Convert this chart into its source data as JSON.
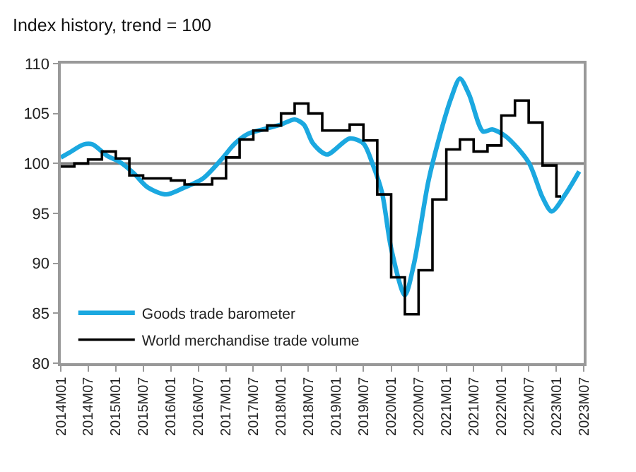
{
  "chart_data": {
    "type": "line",
    "title": "Index history, trend = 100",
    "xlim": [
      "2014-01",
      "2023-07"
    ],
    "xticks": [
      {
        "value": "2014-01",
        "label": "2014M01"
      },
      {
        "value": "2014-07",
        "label": "2014M07"
      },
      {
        "value": "2015-01",
        "label": "2015M01"
      },
      {
        "value": "2015-07",
        "label": "2015M07"
      },
      {
        "value": "2016-01",
        "label": "2016M01"
      },
      {
        "value": "2016-07",
        "label": "2016M07"
      },
      {
        "value": "2017-01",
        "label": "2017M01"
      },
      {
        "value": "2017-07",
        "label": "2017M07"
      },
      {
        "value": "2018-01",
        "label": "2018M01"
      },
      {
        "value": "2018-07",
        "label": "2018M07"
      },
      {
        "value": "2019-01",
        "label": "2019M01"
      },
      {
        "value": "2019-07",
        "label": "2019M07"
      },
      {
        "value": "2020-01",
        "label": "2020M01"
      },
      {
        "value": "2020-07",
        "label": "2020M07"
      },
      {
        "value": "2021-01",
        "label": "2021M01"
      },
      {
        "value": "2021-07",
        "label": "2021M07"
      },
      {
        "value": "2022-01",
        "label": "2022M01"
      },
      {
        "value": "2022-07",
        "label": "2022M07"
      },
      {
        "value": "2023-01",
        "label": "2023M01"
      },
      {
        "value": "2023-07",
        "label": "2023M07"
      }
    ],
    "ylim": [
      80,
      110
    ],
    "yticks": [
      80,
      85,
      90,
      95,
      100,
      105,
      110
    ],
    "grid": false,
    "legend": "bottom left",
    "marker": "none",
    "ref_lines": [
      {
        "axis": "y",
        "value": 100,
        "color": "#808080"
      }
    ],
    "series": [
      {
        "name": "Goods trade barometer",
        "color": "#1ba8e0",
        "x": [
          "2014-01",
          "2014-03",
          "2014-06",
          "2014-08",
          "2014-11",
          "2015-02",
          "2015-05",
          "2015-08",
          "2015-12",
          "2016-04",
          "2016-08",
          "2016-12",
          "2017-03",
          "2017-06",
          "2017-09",
          "2018-01",
          "2018-04",
          "2018-06",
          "2018-08",
          "2018-11",
          "2019-04",
          "2019-07",
          "2019-09",
          "2019-11",
          "2020-01",
          "2020-04",
          "2020-06",
          "2020-09",
          "2020-11",
          "2021-02",
          "2021-04",
          "2021-06",
          "2021-09",
          "2021-11",
          "2022-02",
          "2022-07",
          "2022-10",
          "2022-12",
          "2023-03",
          "2023-06"
        ],
        "values": [
          100.6,
          101.1,
          101.9,
          101.9,
          100.8,
          100.1,
          99,
          97.6,
          96.9,
          97.6,
          98.5,
          100.4,
          102,
          103,
          103.4,
          103.9,
          104.4,
          103.9,
          102,
          100.9,
          102.5,
          102,
          99.9,
          97.1,
          91.5,
          86.8,
          90,
          98,
          101.8,
          106.5,
          108.5,
          106.9,
          103.2,
          103.4,
          102.7,
          100.1,
          96.6,
          95.2,
          96.9,
          99.2
        ]
      },
      {
        "name": "World merchandise trade volume",
        "type": "step",
        "color": "#000000",
        "x": [
          "2014-01",
          "2014-04",
          "2014-07",
          "2014-10",
          "2015-01",
          "2015-04",
          "2015-07",
          "2015-10",
          "2016-01",
          "2016-04",
          "2016-07",
          "2016-10",
          "2017-01",
          "2017-04",
          "2017-07",
          "2017-10",
          "2018-01",
          "2018-04",
          "2018-07",
          "2018-10",
          "2019-01",
          "2019-04",
          "2019-07",
          "2019-10",
          "2020-01",
          "2020-04",
          "2020-07",
          "2020-10",
          "2021-01",
          "2021-04",
          "2021-07",
          "2021-10",
          "2022-01",
          "2022-04",
          "2022-07",
          "2022-10",
          "2023-01",
          "2023-02"
        ],
        "values": [
          99.7,
          100,
          100.4,
          101.2,
          100.5,
          98.8,
          98.5,
          98.5,
          98.3,
          97.9,
          97.9,
          98.5,
          100.6,
          102.4,
          103.3,
          103.8,
          105,
          106,
          105,
          103.3,
          103.3,
          103.9,
          102.3,
          96.9,
          88.6,
          84.9,
          89.3,
          96.4,
          101.4,
          102.4,
          101.2,
          101.8,
          104.8,
          106.3,
          104.1,
          99.8,
          96.7,
          96.7
        ]
      }
    ]
  }
}
